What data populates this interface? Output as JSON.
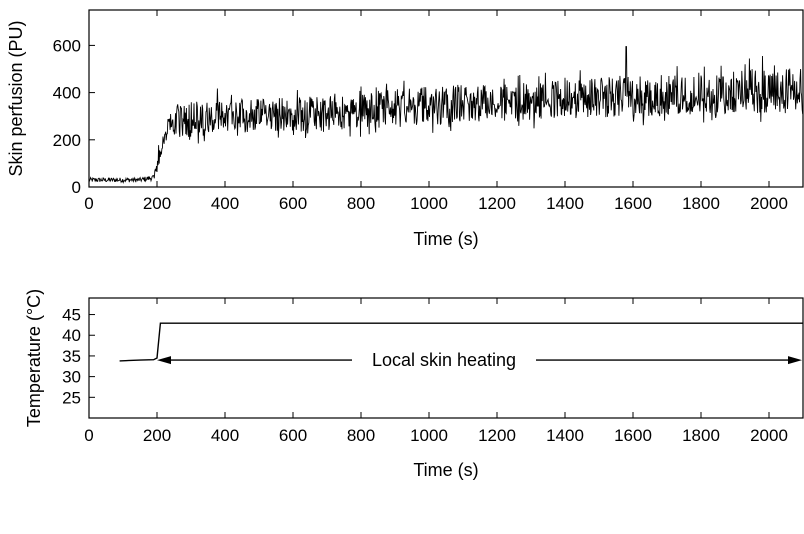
{
  "chart_data": [
    {
      "type": "line",
      "xlabel": "Time (s)",
      "ylabel": "Skin perfusion (PU)",
      "xlim": [
        0,
        2100
      ],
      "ylim": [
        0,
        750
      ],
      "xticks": [
        "0",
        "200",
        "400",
        "600",
        "800",
        "1000",
        "1200",
        "1400",
        "1600",
        "1800",
        "2000"
      ],
      "yticks": [
        "0",
        "200",
        "400",
        "600"
      ],
      "grid": false,
      "line_color": "#000000",
      "series": [
        {
          "x": [
            0,
            150,
            190,
            200,
            220,
            250,
            300,
            400,
            500,
            600,
            700,
            800,
            900,
            1000,
            1100,
            1200,
            1300,
            1400,
            1500,
            1600,
            1700,
            1800,
            1900,
            2000,
            2100
          ],
          "center": [
            30,
            30,
            40,
            90,
            200,
            280,
            285,
            290,
            300,
            305,
            310,
            320,
            330,
            335,
            340,
            345,
            350,
            360,
            365,
            370,
            370,
            375,
            380,
            385,
            385
          ],
          "band_low": [
            20,
            20,
            25,
            60,
            170,
            220,
            210,
            230,
            230,
            230,
            240,
            250,
            260,
            260,
            270,
            270,
            280,
            290,
            290,
            300,
            300,
            300,
            310,
            310,
            320
          ],
          "band_high": [
            40,
            40,
            50,
            110,
            240,
            350,
            360,
            360,
            370,
            380,
            380,
            400,
            410,
            420,
            430,
            430,
            440,
            450,
            460,
            470,
            470,
            480,
            490,
            500,
            500
          ],
          "peak": {
            "x": 1580,
            "y": 595
          }
        }
      ]
    },
    {
      "type": "line",
      "xlabel": "Time (s)",
      "ylabel": "Temperature (°C)",
      "xlim": [
        0,
        2100
      ],
      "ylim": [
        20,
        49
      ],
      "xticks": [
        "0",
        "200",
        "400",
        "600",
        "800",
        "1000",
        "1200",
        "1400",
        "1600",
        "1800",
        "2000"
      ],
      "yticks": [
        "25",
        "30",
        "35",
        "40",
        "45"
      ],
      "grid": false,
      "line_color": "#000000",
      "series": [
        {
          "x": [
            90,
            150,
            190,
            200,
            210,
            2100
          ],
          "y": [
            33.8,
            34.0,
            34.1,
            34.5,
            42.9,
            42.9
          ]
        }
      ],
      "annotation": {
        "text": "Local skin heating",
        "x_start": 200,
        "x_end": 2100,
        "y": 34.0
      }
    }
  ]
}
